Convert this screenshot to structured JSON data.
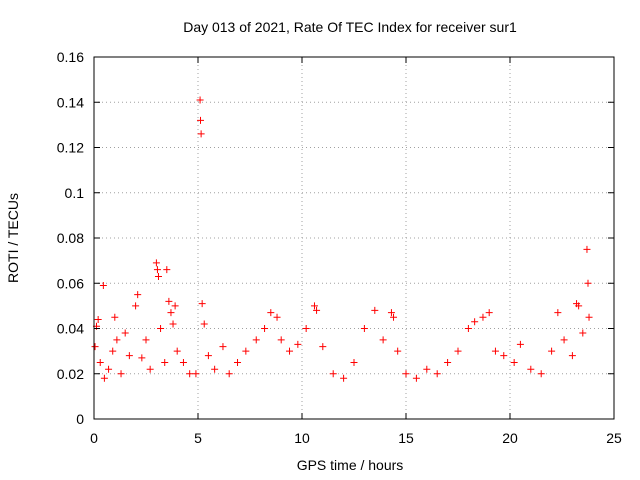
{
  "chart_data": {
    "type": "scatter",
    "title": "Day 013 of 2021, Rate Of TEC Index for receiver sur1",
    "xlabel": "GPS time / hours",
    "ylabel": "ROTI / TECUs",
    "xlim": [
      0,
      25
    ],
    "ylim": [
      0,
      0.16
    ],
    "xticks": [
      0,
      5,
      10,
      15,
      20,
      25
    ],
    "yticks": [
      0,
      0.02,
      0.04,
      0.06,
      0.08,
      0.1,
      0.12,
      0.14,
      0.16
    ],
    "xtick_labels": [
      "0",
      "5",
      "10",
      "15",
      "20",
      "25"
    ],
    "ytick_labels": [
      "0",
      "0.02",
      "0.04",
      "0.06",
      "0.08",
      "0.1",
      "0.12",
      "0.14",
      "0.16"
    ],
    "grid": true,
    "marker": "+",
    "color": "#ff0000",
    "series": [
      {
        "name": "sur1",
        "points": [
          [
            0.05,
            0.032
          ],
          [
            0.12,
            0.041
          ],
          [
            0.2,
            0.044
          ],
          [
            0.3,
            0.025
          ],
          [
            0.45,
            0.059
          ],
          [
            0.5,
            0.018
          ],
          [
            0.7,
            0.022
          ],
          [
            0.9,
            0.03
          ],
          [
            1.0,
            0.045
          ],
          [
            1.1,
            0.035
          ],
          [
            1.3,
            0.02
          ],
          [
            1.5,
            0.038
          ],
          [
            1.7,
            0.028
          ],
          [
            2.0,
            0.05
          ],
          [
            2.1,
            0.055
          ],
          [
            2.3,
            0.027
          ],
          [
            2.5,
            0.035
          ],
          [
            2.7,
            0.022
          ],
          [
            3.0,
            0.069
          ],
          [
            3.05,
            0.066
          ],
          [
            3.1,
            0.063
          ],
          [
            3.2,
            0.04
          ],
          [
            3.4,
            0.025
          ],
          [
            3.5,
            0.066
          ],
          [
            3.6,
            0.052
          ],
          [
            3.7,
            0.047
          ],
          [
            3.8,
            0.042
          ],
          [
            3.9,
            0.05
          ],
          [
            4.0,
            0.03
          ],
          [
            4.3,
            0.025
          ],
          [
            4.6,
            0.02
          ],
          [
            4.9,
            0.02
          ],
          [
            5.1,
            0.141
          ],
          [
            5.12,
            0.132
          ],
          [
            5.15,
            0.126
          ],
          [
            5.2,
            0.051
          ],
          [
            5.3,
            0.042
          ],
          [
            5.5,
            0.028
          ],
          [
            5.8,
            0.022
          ],
          [
            6.2,
            0.032
          ],
          [
            6.5,
            0.02
          ],
          [
            6.9,
            0.025
          ],
          [
            7.3,
            0.03
          ],
          [
            7.8,
            0.035
          ],
          [
            8.2,
            0.04
          ],
          [
            8.5,
            0.047
          ],
          [
            8.8,
            0.045
          ],
          [
            9.0,
            0.035
          ],
          [
            9.4,
            0.03
          ],
          [
            9.8,
            0.033
          ],
          [
            10.2,
            0.04
          ],
          [
            10.6,
            0.05
          ],
          [
            10.7,
            0.048
          ],
          [
            11.0,
            0.032
          ],
          [
            11.5,
            0.02
          ],
          [
            12.0,
            0.018
          ],
          [
            12.5,
            0.025
          ],
          [
            13.0,
            0.04
          ],
          [
            13.5,
            0.048
          ],
          [
            13.9,
            0.035
          ],
          [
            14.3,
            0.047
          ],
          [
            14.4,
            0.045
          ],
          [
            14.6,
            0.03
          ],
          [
            15.0,
            0.02
          ],
          [
            15.5,
            0.018
          ],
          [
            16.0,
            0.022
          ],
          [
            16.5,
            0.02
          ],
          [
            17.0,
            0.025
          ],
          [
            17.5,
            0.03
          ],
          [
            18.0,
            0.04
          ],
          [
            18.3,
            0.043
          ],
          [
            18.7,
            0.045
          ],
          [
            19.0,
            0.047
          ],
          [
            19.3,
            0.03
          ],
          [
            19.7,
            0.028
          ],
          [
            20.2,
            0.025
          ],
          [
            20.5,
            0.033
          ],
          [
            21.0,
            0.022
          ],
          [
            21.5,
            0.02
          ],
          [
            22.0,
            0.03
          ],
          [
            22.3,
            0.047
          ],
          [
            22.6,
            0.035
          ],
          [
            23.0,
            0.028
          ],
          [
            23.2,
            0.051
          ],
          [
            23.3,
            0.05
          ],
          [
            23.5,
            0.038
          ],
          [
            23.7,
            0.075
          ],
          [
            23.75,
            0.06
          ],
          [
            23.8,
            0.045
          ]
        ]
      }
    ]
  }
}
